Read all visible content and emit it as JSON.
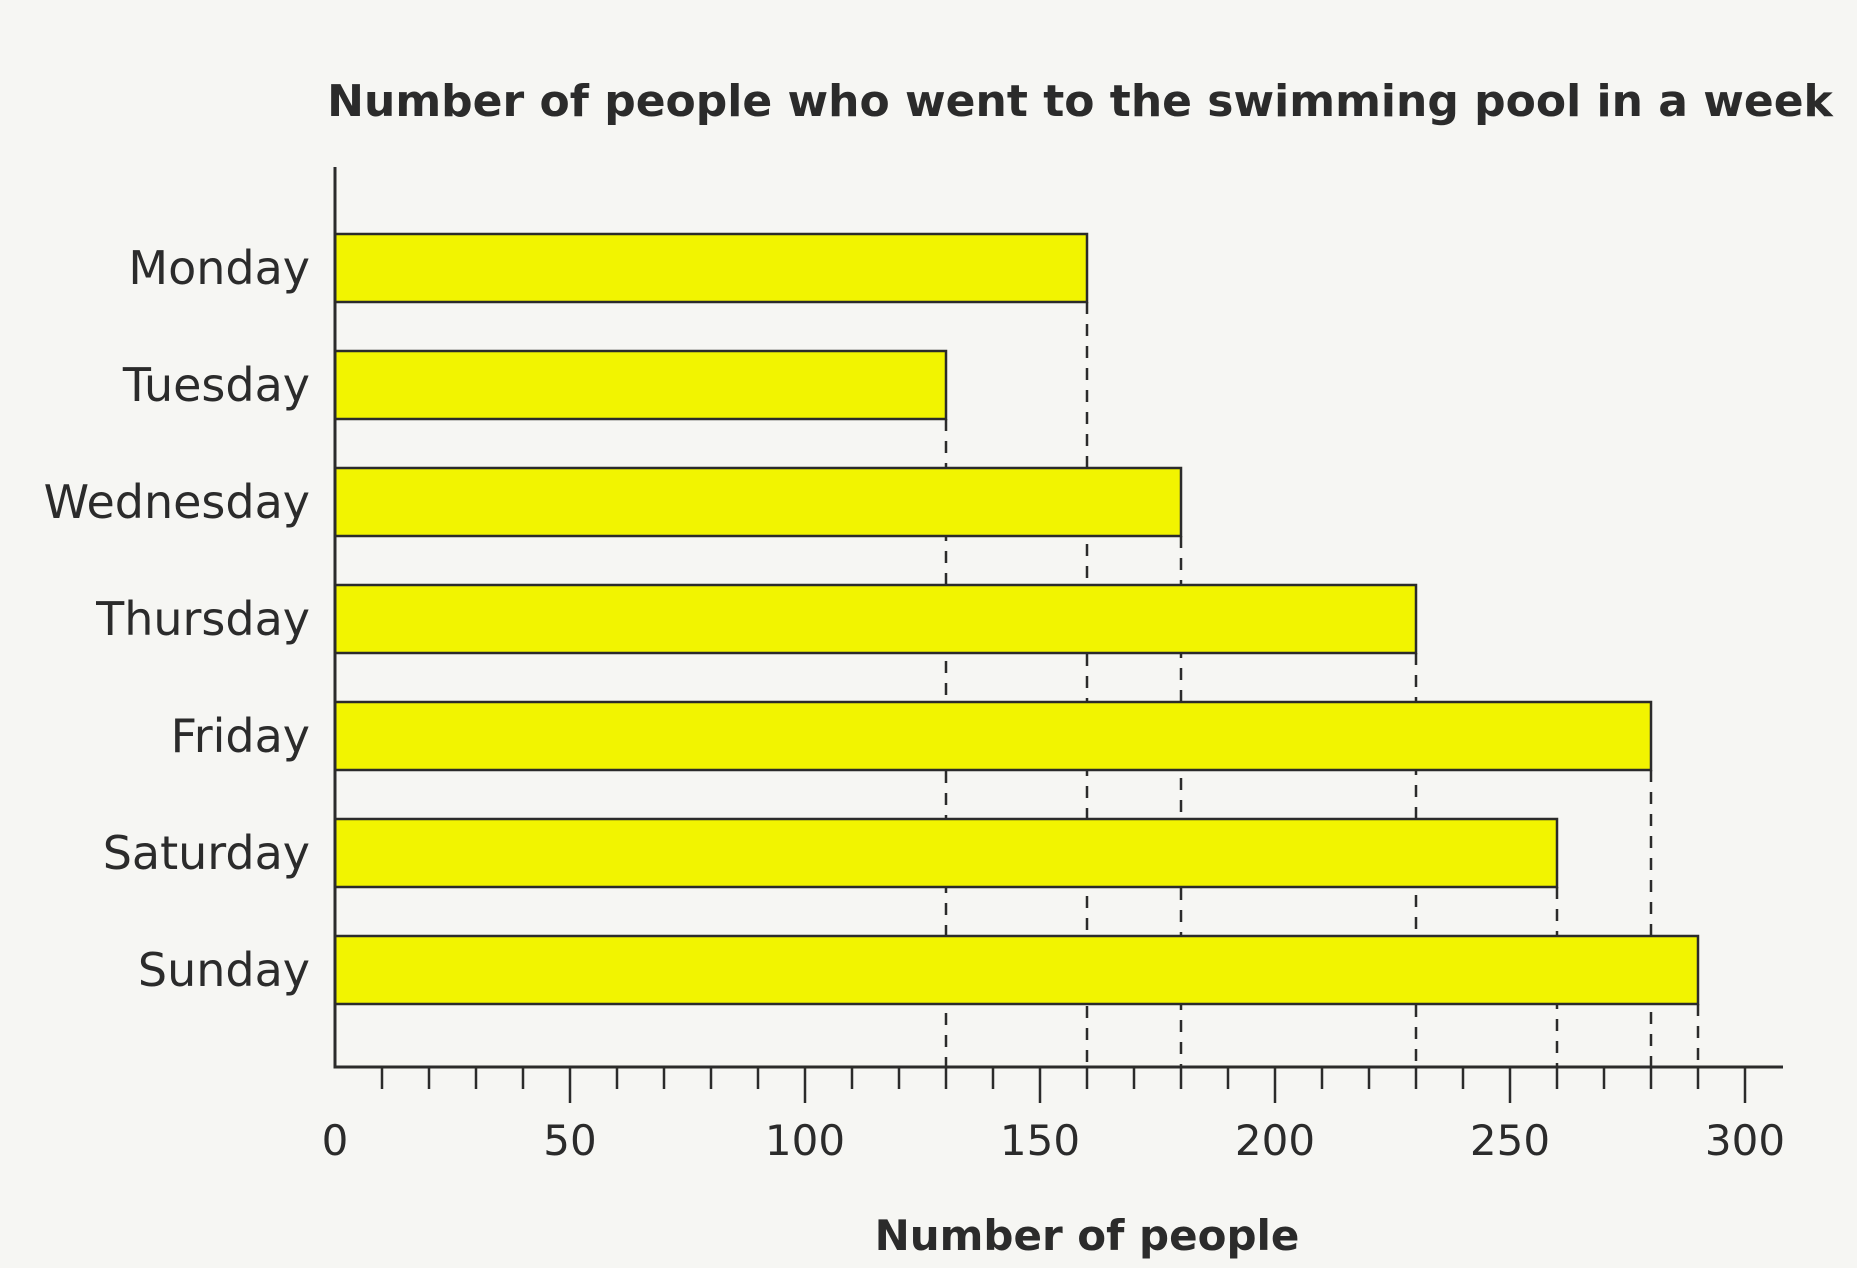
{
  "chart_data": {
    "type": "bar",
    "orientation": "horizontal",
    "title": "Number of people who went to the swimming pool in a week",
    "xlabel": "Number of people",
    "ylabel": "",
    "categories": [
      "Monday",
      "Tuesday",
      "Wednesday",
      "Thursday",
      "Friday",
      "Saturday",
      "Sunday"
    ],
    "values": [
      160,
      130,
      180,
      230,
      280,
      260,
      290
    ],
    "xlim": [
      0,
      300
    ],
    "major_ticks": [
      "0",
      "50",
      "100",
      "150",
      "200",
      "250",
      "300"
    ],
    "minor_tick_step": 10,
    "grid": false,
    "guide_lines": "dashed",
    "bar_color": "#f2f400",
    "outline_color": "#2b2b2b"
  }
}
